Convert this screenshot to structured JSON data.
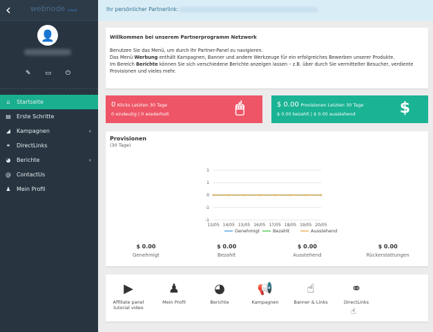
{
  "sidebar": {
    "logo": "webnode",
    "logo_sub": "ampuls",
    "items": [
      {
        "label": "Startseite",
        "icon": "home-icon",
        "glyph": "⌂",
        "active": true
      },
      {
        "label": "Erste Schritte",
        "icon": "book-icon",
        "glyph": "▤"
      },
      {
        "label": "Kampagnen",
        "icon": "campaign-icon",
        "glyph": "◢",
        "chevron": "‹"
      },
      {
        "label": "DirectLinks",
        "icon": "directlink-icon",
        "glyph": "⚭"
      },
      {
        "label": "Berichte",
        "icon": "pie-icon",
        "glyph": "◕",
        "chevron": "‹"
      },
      {
        "label": "ContactUs",
        "icon": "at-icon",
        "glyph": "@"
      },
      {
        "label": "Mein Profil",
        "icon": "user-icon",
        "glyph": "♟"
      }
    ]
  },
  "linkbar": {
    "label": "Ihr persönlicher Partnerlink:"
  },
  "welcome": {
    "title": "Willkommen bei unserem Partnerprogramm Netzwerk",
    "l1": "Benutzen Sie das Menü, um durch Ihr Partner-Panel zu navigieren.",
    "l2a": "Das Menü ",
    "l2b": "Werbung",
    "l2c": " enthält Kampagnen, Banner und andere Werkzeuge für ein erfolgreiches Bewerben unserer Produkte.",
    "l3a": "Im Bereich ",
    "l3b": "Berichte",
    "l3c": " können Sie sich verschiedene Berichte anzeigen lassen – z.B. über durch Sie vermittelter Besucher, verdiente Provisionen und vieles mehr."
  },
  "clicks": {
    "value": "0",
    "label": "Klicks Letzten 30 Tage",
    "sub": "0 eindeutig | 0 wiederholt"
  },
  "commissions": {
    "value": "$ 0.00",
    "label": "Provisionen Letzten 30 Tage",
    "sub": "$ 0.00 bezahlt | $ 0.00 ausstehend"
  },
  "provisionen": {
    "title": "Provisionen",
    "subtitle": "(30 Tage)",
    "totals": [
      {
        "value": "$ 0.00",
        "label": "Genehmigt"
      },
      {
        "value": "$ 0.00",
        "label": "Bezahlt"
      },
      {
        "value": "$ 0.00",
        "label": "Ausstehend"
      },
      {
        "value": "$ 0.00",
        "label": "Rückerstattungen"
      }
    ]
  },
  "chart_data": {
    "type": "line",
    "categories": [
      "13/05",
      "14/05",
      "15/05",
      "16/05",
      "17/05",
      "18/05",
      "19/05",
      "20/05"
    ],
    "ytick_labels": [
      "1",
      "1",
      "0",
      "-1",
      "-1"
    ],
    "ylim": [
      -1,
      1
    ],
    "grid": true,
    "legend": "bottom",
    "series": [
      {
        "name": "Genehmigt",
        "color": "#5aa9e6",
        "values": [
          0,
          0,
          0,
          0,
          0,
          0,
          0,
          0
        ]
      },
      {
        "name": "Bezahlt",
        "color": "#5cc85c",
        "values": [
          0,
          0,
          0,
          0,
          0,
          0,
          0,
          0
        ]
      },
      {
        "name": "Ausstehend",
        "color": "#f0b060",
        "values": [
          0,
          0,
          0,
          0,
          0,
          0,
          0,
          0
        ]
      }
    ]
  },
  "shortcuts": [
    {
      "label": "Affiliate panel tutorial video",
      "icon": "video-icon",
      "glyph": "▶"
    },
    {
      "label": "Mein Profil",
      "icon": "user-icon",
      "glyph": "♟"
    },
    {
      "label": "Berichte",
      "icon": "pie-chart-icon",
      "glyph": "◕"
    },
    {
      "label": "Kampagnen",
      "icon": "megaphone-icon",
      "glyph": "📢"
    },
    {
      "label": "Banner & Links",
      "icon": "pointer-hand-icon",
      "glyph": "☝"
    },
    {
      "label": "DirectLinks",
      "icon": "directlink-icon",
      "glyph": "⚭"
    }
  ]
}
